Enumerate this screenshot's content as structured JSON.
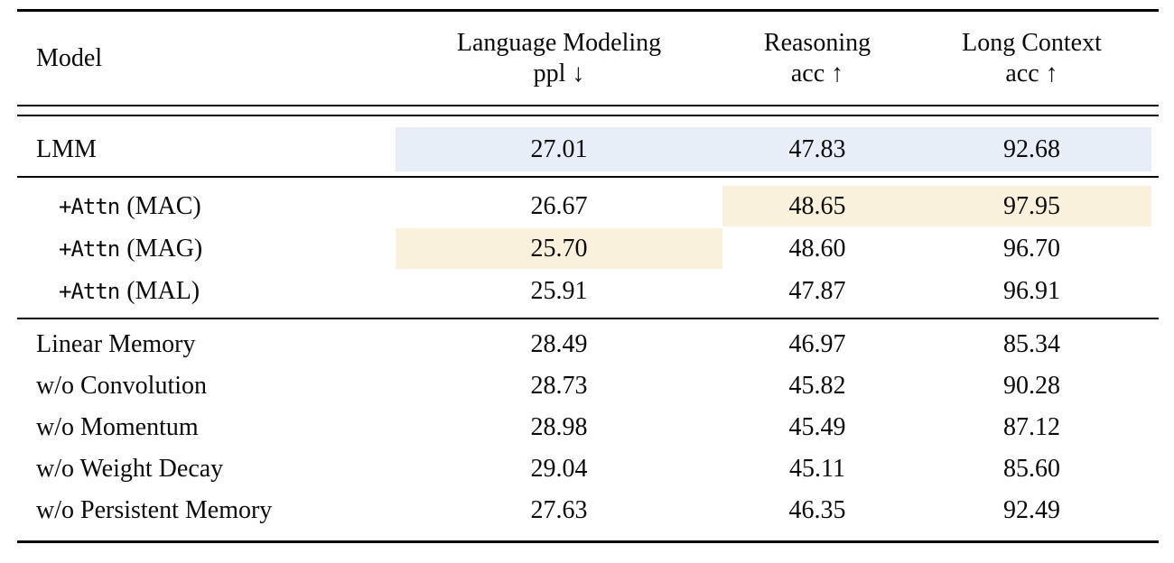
{
  "colors": {
    "highlight_blue": "#e8eef8",
    "highlight_cream": "#faf1dd",
    "rule": "#000000",
    "text": "#0a0a0a",
    "background": "#ffffff"
  },
  "table": {
    "header": {
      "model": "Model",
      "lm_line1": "Language Modeling",
      "lm_line2": "ppl ↓",
      "reasoning_line1": "Reasoning",
      "reasoning_line2": "acc ↑",
      "long_context_line1": "Long Context",
      "long_context_line2": "acc ↑"
    },
    "rows": [
      {
        "name": "LMM",
        "ppl": "27.01",
        "reasoning": "47.83",
        "long_context": "92.68",
        "highlight_color": "blue",
        "highlights": [
          "ppl",
          "reasoning",
          "long_context"
        ]
      },
      {
        "prefix": "+Attn",
        "name": "(MAC)",
        "ppl": "26.67",
        "reasoning": "48.65",
        "long_context": "97.95",
        "highlight_color": "cream",
        "highlights": [
          "reasoning",
          "long_context"
        ]
      },
      {
        "prefix": "+Attn",
        "name": "(MAG)",
        "ppl": "25.70",
        "reasoning": "48.60",
        "long_context": "96.70",
        "highlight_color": "cream",
        "highlights": [
          "ppl"
        ]
      },
      {
        "prefix": "+Attn",
        "name": "(MAL)",
        "ppl": "25.91",
        "reasoning": "47.87",
        "long_context": "96.91",
        "highlight_color": "cream",
        "highlights": []
      },
      {
        "name": "Linear Memory",
        "ppl": "28.49",
        "reasoning": "46.97",
        "long_context": "85.34",
        "highlights": []
      },
      {
        "name": "w/o Convolution",
        "ppl": "28.73",
        "reasoning": "45.82",
        "long_context": "90.28",
        "highlights": []
      },
      {
        "name": "w/o Momentum",
        "ppl": "28.98",
        "reasoning": "45.49",
        "long_context": "87.12",
        "highlights": []
      },
      {
        "name": "w/o Weight Decay",
        "ppl": "29.04",
        "reasoning": "45.11",
        "long_context": "85.60",
        "highlights": []
      },
      {
        "name": "w/o Persistent Memory",
        "ppl": "27.63",
        "reasoning": "46.35",
        "long_context": "92.49",
        "highlights": []
      }
    ]
  }
}
